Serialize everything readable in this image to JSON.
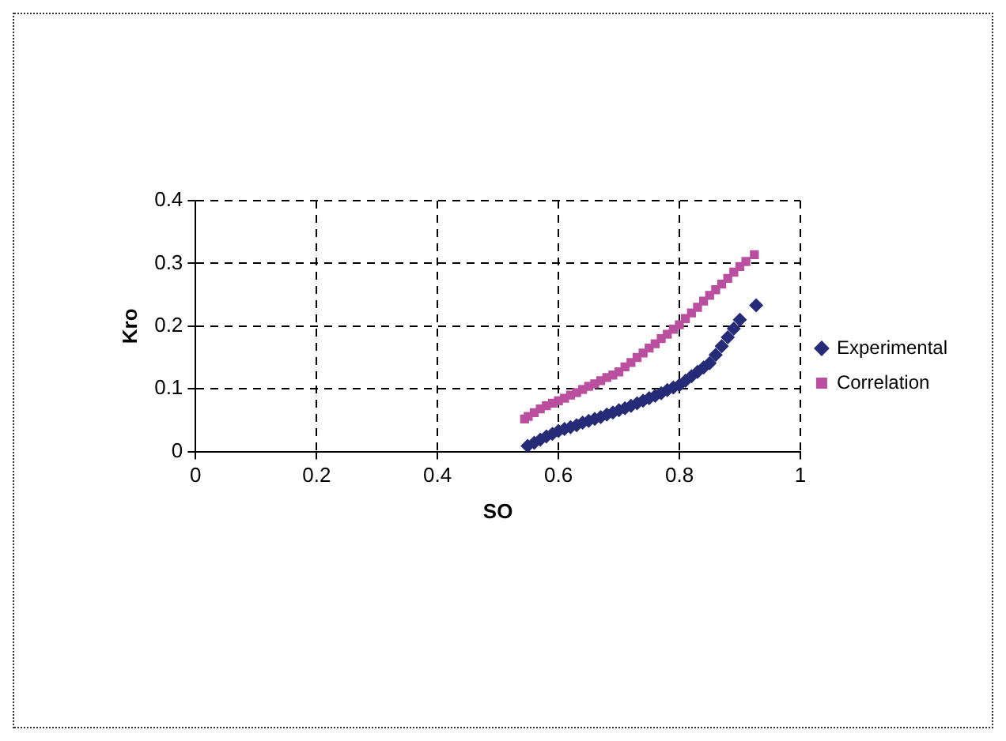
{
  "chart_data": {
    "type": "scatter",
    "xlabel": "SO",
    "ylabel": "Kro",
    "xlim": [
      0,
      1
    ],
    "xticks": [
      0,
      0.2,
      0.4,
      0.6,
      0.8,
      1
    ],
    "ylim": [
      0,
      0.4
    ],
    "yticks": [
      0,
      0.1,
      0.2,
      0.3,
      0.4
    ],
    "grid": true,
    "legend": "right",
    "series": [
      {
        "name": "Experimental",
        "color": "#262b78",
        "marker": "diamond",
        "x": [
          0.549,
          0.56,
          0.57,
          0.58,
          0.59,
          0.6,
          0.61,
          0.62,
          0.63,
          0.64,
          0.65,
          0.66,
          0.67,
          0.68,
          0.69,
          0.7,
          0.71,
          0.72,
          0.73,
          0.74,
          0.75,
          0.76,
          0.77,
          0.78,
          0.79,
          0.8,
          0.81,
          0.82,
          0.83,
          0.84,
          0.85,
          0.86,
          0.87,
          0.88,
          0.89,
          0.9,
          0.927
        ],
        "values": [
          0.009,
          0.014,
          0.019,
          0.024,
          0.028,
          0.033,
          0.036,
          0.039,
          0.042,
          0.046,
          0.049,
          0.052,
          0.055,
          0.059,
          0.062,
          0.066,
          0.069,
          0.073,
          0.077,
          0.081,
          0.085,
          0.089,
          0.093,
          0.098,
          0.102,
          0.106,
          0.113,
          0.12,
          0.127,
          0.134,
          0.141,
          0.154,
          0.168,
          0.182,
          0.196,
          0.21,
          0.233
        ]
      },
      {
        "name": "Correlation",
        "color": "#bb4f9f",
        "marker": "square",
        "x": [
          0.544,
          0.55,
          0.56,
          0.57,
          0.58,
          0.59,
          0.6,
          0.61,
          0.62,
          0.63,
          0.64,
          0.65,
          0.66,
          0.67,
          0.68,
          0.69,
          0.7,
          0.71,
          0.72,
          0.73,
          0.74,
          0.75,
          0.76,
          0.77,
          0.78,
          0.79,
          0.8,
          0.81,
          0.82,
          0.83,
          0.84,
          0.85,
          0.86,
          0.87,
          0.88,
          0.89,
          0.9,
          0.91,
          0.924
        ],
        "values": [
          0.052,
          0.056,
          0.062,
          0.068,
          0.073,
          0.077,
          0.081,
          0.085,
          0.09,
          0.094,
          0.099,
          0.104,
          0.108,
          0.113,
          0.118,
          0.122,
          0.127,
          0.135,
          0.142,
          0.15,
          0.157,
          0.165,
          0.172,
          0.18,
          0.187,
          0.195,
          0.202,
          0.212,
          0.221,
          0.23,
          0.24,
          0.249,
          0.258,
          0.267,
          0.276,
          0.286,
          0.295,
          0.303,
          0.314
        ]
      }
    ]
  }
}
